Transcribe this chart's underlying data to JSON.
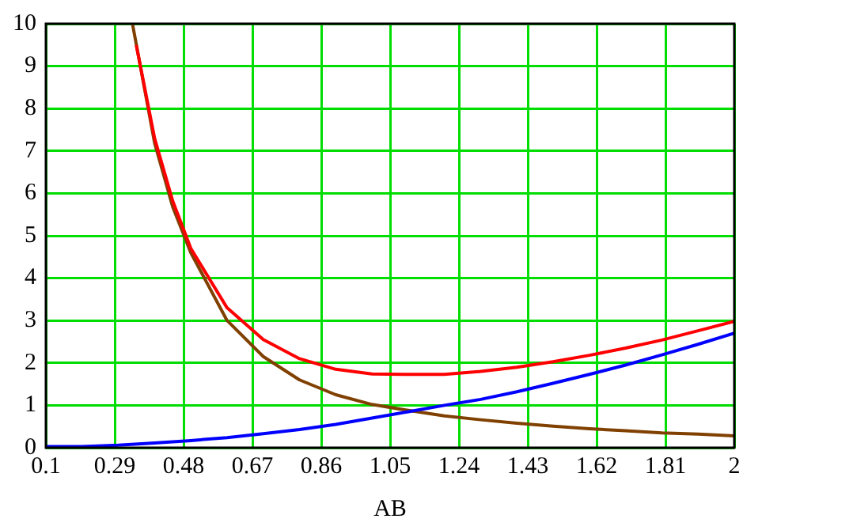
{
  "chart_data": {
    "type": "line",
    "xlabel": "AB",
    "xlim": [
      0.1,
      2
    ],
    "xticks": [
      0.1,
      0.29,
      0.48,
      0.67,
      0.86,
      1.05,
      1.24,
      1.43,
      1.62,
      1.81,
      2
    ],
    "ylim": [
      0,
      10
    ],
    "yticks": [
      0,
      1,
      2,
      3,
      4,
      5,
      6,
      7,
      8,
      9,
      10
    ],
    "grid": true,
    "legend": false,
    "marker": "none",
    "line_style": "solid",
    "series": [
      {
        "color": "#ff0000",
        "x": [
          0.35,
          0.4,
          0.45,
          0.5,
          0.6,
          0.7,
          0.8,
          0.9,
          1.0,
          1.1,
          1.2,
          1.3,
          1.4,
          1.5,
          1.6,
          1.7,
          1.8,
          1.9,
          2.0
        ],
        "values": [
          9.47,
          7.3,
          5.82,
          4.7,
          3.3,
          2.55,
          2.1,
          1.85,
          1.74,
          1.73,
          1.73,
          1.8,
          1.9,
          2.03,
          2.18,
          2.35,
          2.54,
          2.76,
          2.98
        ]
      },
      {
        "color": "#0000ff",
        "x": [
          0.1,
          0.2,
          0.3,
          0.4,
          0.5,
          0.6,
          0.7,
          0.8,
          0.9,
          1.0,
          1.1,
          1.2,
          1.3,
          1.4,
          1.5,
          1.6,
          1.7,
          1.8,
          1.9,
          2.0
        ],
        "values": [
          0.03,
          0.03,
          0.06,
          0.11,
          0.17,
          0.24,
          0.33,
          0.43,
          0.55,
          0.7,
          0.85,
          1.0,
          1.14,
          1.32,
          1.52,
          1.73,
          1.95,
          2.19,
          2.44,
          2.7
        ]
      },
      {
        "color": "#804000",
        "x": [
          0.34,
          0.4,
          0.45,
          0.5,
          0.6,
          0.7,
          0.8,
          0.9,
          1.0,
          1.1,
          1.2,
          1.3,
          1.4,
          1.5,
          1.6,
          1.7,
          1.8,
          1.9,
          2.0
        ],
        "values": [
          9.95,
          7.19,
          5.68,
          4.6,
          3.0,
          2.15,
          1.6,
          1.25,
          1.02,
          0.88,
          0.75,
          0.66,
          0.58,
          0.51,
          0.45,
          0.4,
          0.35,
          0.32,
          0.28
        ]
      }
    ]
  }
}
